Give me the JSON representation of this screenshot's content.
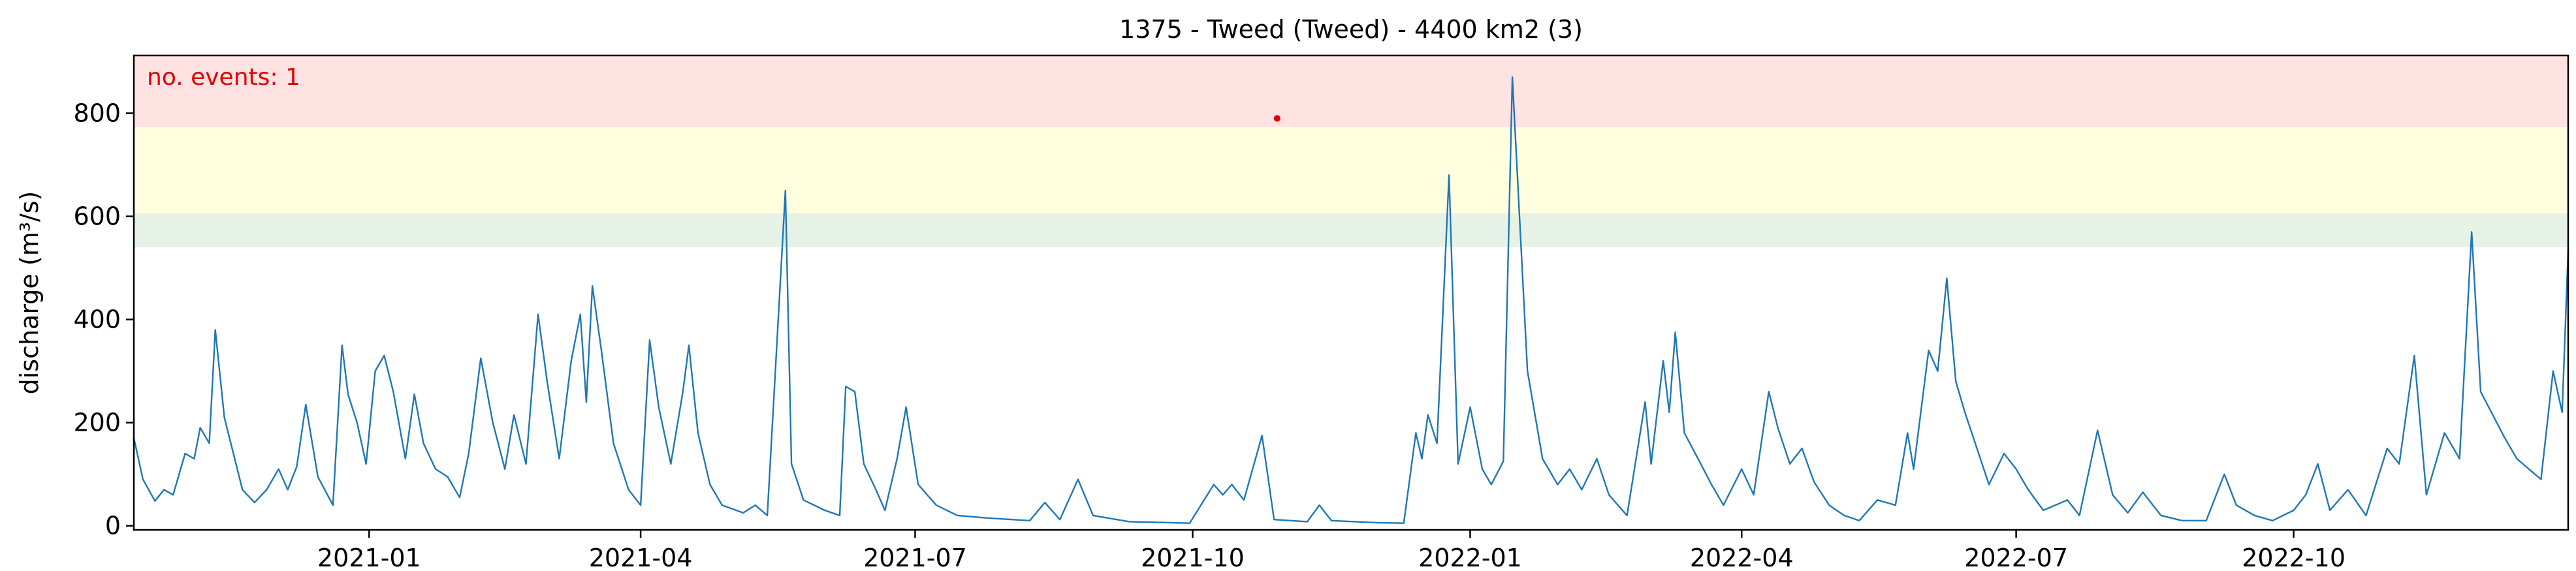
{
  "chart_data": {
    "type": "line",
    "title": "1375 - Tweed (Tweed) - 4400 km2 (3)",
    "xlabel": "",
    "ylabel": "discharge (m³/s)",
    "x_range": [
      "2020-10-15",
      "2022-12-31"
    ],
    "ylim": [
      -8,
      912
    ],
    "x_ticks": [
      "2021-01",
      "2021-04",
      "2021-07",
      "2021-10",
      "2022-01",
      "2022-04",
      "2022-07",
      "2022-10"
    ],
    "x_tick_dates": [
      "2021-01-01",
      "2021-04-01",
      "2021-07-01",
      "2021-10-01",
      "2022-01-01",
      "2022-04-01",
      "2022-07-01",
      "2022-10-01"
    ],
    "y_ticks": [
      0,
      200,
      400,
      600,
      800
    ],
    "bands": [
      {
        "from": 540,
        "to": 606,
        "color": "#e6f2e6"
      },
      {
        "from": 606,
        "to": 773,
        "color": "#ffffe0"
      },
      {
        "from": 773,
        "to": 912,
        "color": "#ffe2e2"
      }
    ],
    "annotation": {
      "text": "no. events: 1",
      "color": "#e00000"
    },
    "line_color": "#1f77b4",
    "event_color": "#e00000",
    "grid": false,
    "series": [
      {
        "points": [
          [
            "2020-10-15",
            170
          ],
          [
            "2020-10-18",
            90
          ],
          [
            "2020-10-22",
            48
          ],
          [
            "2020-10-25",
            70
          ],
          [
            "2020-10-28",
            60
          ],
          [
            "2020-11-01",
            140
          ],
          [
            "2020-11-04",
            130
          ],
          [
            "2020-11-06",
            190
          ],
          [
            "2020-11-09",
            160
          ],
          [
            "2020-11-11",
            380
          ],
          [
            "2020-11-14",
            210
          ],
          [
            "2020-11-20",
            70
          ],
          [
            "2020-11-24",
            45
          ],
          [
            "2020-11-28",
            70
          ],
          [
            "2020-12-02",
            110
          ],
          [
            "2020-12-05",
            70
          ],
          [
            "2020-12-08",
            115
          ],
          [
            "2020-12-11",
            235
          ],
          [
            "2020-12-15",
            95
          ],
          [
            "2020-12-20",
            40
          ],
          [
            "2020-12-23",
            350
          ],
          [
            "2020-12-25",
            255
          ],
          [
            "2020-12-28",
            200
          ],
          [
            "2020-12-31",
            120
          ],
          [
            "2021-01-03",
            300
          ],
          [
            "2021-01-06",
            330
          ],
          [
            "2021-01-09",
            260
          ],
          [
            "2021-01-13",
            130
          ],
          [
            "2021-01-16",
            255
          ],
          [
            "2021-01-19",
            160
          ],
          [
            "2021-01-23",
            110
          ],
          [
            "2021-01-27",
            95
          ],
          [
            "2021-01-31",
            55
          ],
          [
            "2021-02-03",
            140
          ],
          [
            "2021-02-07",
            325
          ],
          [
            "2021-02-11",
            200
          ],
          [
            "2021-02-15",
            110
          ],
          [
            "2021-02-18",
            215
          ],
          [
            "2021-02-22",
            120
          ],
          [
            "2021-02-26",
            410
          ],
          [
            "2021-03-01",
            280
          ],
          [
            "2021-03-05",
            130
          ],
          [
            "2021-03-09",
            320
          ],
          [
            "2021-03-12",
            410
          ],
          [
            "2021-03-14",
            240
          ],
          [
            "2021-03-16",
            465
          ],
          [
            "2021-03-19",
            340
          ],
          [
            "2021-03-23",
            160
          ],
          [
            "2021-03-28",
            70
          ],
          [
            "2021-04-01",
            40
          ],
          [
            "2021-04-04",
            360
          ],
          [
            "2021-04-07",
            230
          ],
          [
            "2021-04-11",
            120
          ],
          [
            "2021-04-15",
            260
          ],
          [
            "2021-04-17",
            350
          ],
          [
            "2021-04-20",
            180
          ],
          [
            "2021-04-24",
            80
          ],
          [
            "2021-04-28",
            40
          ],
          [
            "2021-05-05",
            25
          ],
          [
            "2021-05-09",
            40
          ],
          [
            "2021-05-13",
            20
          ],
          [
            "2021-05-19",
            650
          ],
          [
            "2021-05-21",
            120
          ],
          [
            "2021-05-25",
            50
          ],
          [
            "2021-06-01",
            30
          ],
          [
            "2021-06-06",
            20
          ],
          [
            "2021-06-08",
            270
          ],
          [
            "2021-06-11",
            260
          ],
          [
            "2021-06-14",
            120
          ],
          [
            "2021-06-18",
            70
          ],
          [
            "2021-06-21",
            30
          ],
          [
            "2021-06-25",
            130
          ],
          [
            "2021-06-28",
            230
          ],
          [
            "2021-07-02",
            80
          ],
          [
            "2021-07-08",
            40
          ],
          [
            "2021-07-15",
            20
          ],
          [
            "2021-07-25",
            15
          ],
          [
            "2021-08-08",
            10
          ],
          [
            "2021-08-13",
            45
          ],
          [
            "2021-08-18",
            12
          ],
          [
            "2021-08-24",
            90
          ],
          [
            "2021-08-29",
            20
          ],
          [
            "2021-09-10",
            8
          ],
          [
            "2021-09-30",
            5
          ],
          [
            "2021-10-08",
            80
          ],
          [
            "2021-10-11",
            60
          ],
          [
            "2021-10-14",
            80
          ],
          [
            "2021-10-18",
            50
          ],
          [
            "2021-10-24",
            175
          ],
          [
            "2021-10-28",
            12
          ],
          [
            "2021-11-08",
            8
          ],
          [
            "2021-11-12",
            40
          ],
          [
            "2021-11-16",
            10
          ],
          [
            "2021-12-01",
            6
          ],
          [
            "2021-12-10",
            5
          ],
          [
            "2021-12-14",
            180
          ],
          [
            "2021-12-16",
            130
          ],
          [
            "2021-12-18",
            215
          ],
          [
            "2021-12-21",
            160
          ],
          [
            "2021-12-25",
            680
          ],
          [
            "2021-12-28",
            120
          ],
          [
            "2022-01-01",
            230
          ],
          [
            "2022-01-05",
            110
          ],
          [
            "2022-01-08",
            80
          ],
          [
            "2022-01-12",
            125
          ],
          [
            "2022-01-15",
            870
          ],
          [
            "2022-01-17",
            640
          ],
          [
            "2022-01-20",
            300
          ],
          [
            "2022-01-25",
            130
          ],
          [
            "2022-01-30",
            80
          ],
          [
            "2022-02-03",
            110
          ],
          [
            "2022-02-07",
            70
          ],
          [
            "2022-02-12",
            130
          ],
          [
            "2022-02-16",
            60
          ],
          [
            "2022-02-22",
            20
          ],
          [
            "2022-02-28",
            240
          ],
          [
            "2022-03-02",
            120
          ],
          [
            "2022-03-06",
            320
          ],
          [
            "2022-03-08",
            220
          ],
          [
            "2022-03-10",
            375
          ],
          [
            "2022-03-13",
            180
          ],
          [
            "2022-03-18",
            125
          ],
          [
            "2022-03-22",
            80
          ],
          [
            "2022-03-26",
            40
          ],
          [
            "2022-04-01",
            110
          ],
          [
            "2022-04-05",
            60
          ],
          [
            "2022-04-10",
            260
          ],
          [
            "2022-04-13",
            190
          ],
          [
            "2022-04-17",
            120
          ],
          [
            "2022-04-21",
            150
          ],
          [
            "2022-04-25",
            85
          ],
          [
            "2022-04-30",
            40
          ],
          [
            "2022-05-05",
            20
          ],
          [
            "2022-05-10",
            10
          ],
          [
            "2022-05-16",
            50
          ],
          [
            "2022-05-22",
            40
          ],
          [
            "2022-05-26",
            180
          ],
          [
            "2022-05-28",
            110
          ],
          [
            "2022-06-02",
            340
          ],
          [
            "2022-06-05",
            300
          ],
          [
            "2022-06-08",
            480
          ],
          [
            "2022-06-11",
            280
          ],
          [
            "2022-06-14",
            220
          ],
          [
            "2022-06-18",
            150
          ],
          [
            "2022-06-22",
            80
          ],
          [
            "2022-06-27",
            140
          ],
          [
            "2022-07-01",
            110
          ],
          [
            "2022-07-05",
            70
          ],
          [
            "2022-07-10",
            30
          ],
          [
            "2022-07-18",
            50
          ],
          [
            "2022-07-22",
            20
          ],
          [
            "2022-07-28",
            185
          ],
          [
            "2022-08-02",
            60
          ],
          [
            "2022-08-07",
            25
          ],
          [
            "2022-08-12",
            65
          ],
          [
            "2022-08-18",
            20
          ],
          [
            "2022-08-25",
            10
          ],
          [
            "2022-09-02",
            10
          ],
          [
            "2022-09-08",
            100
          ],
          [
            "2022-09-12",
            40
          ],
          [
            "2022-09-18",
            20
          ],
          [
            "2022-09-24",
            10
          ],
          [
            "2022-10-01",
            30
          ],
          [
            "2022-10-05",
            60
          ],
          [
            "2022-10-09",
            120
          ],
          [
            "2022-10-13",
            30
          ],
          [
            "2022-10-19",
            70
          ],
          [
            "2022-10-25",
            20
          ],
          [
            "2022-11-01",
            150
          ],
          [
            "2022-11-05",
            120
          ],
          [
            "2022-11-10",
            330
          ],
          [
            "2022-11-14",
            60
          ],
          [
            "2022-11-20",
            180
          ],
          [
            "2022-11-25",
            130
          ],
          [
            "2022-11-29",
            570
          ],
          [
            "2022-12-02",
            260
          ],
          [
            "2022-12-06",
            215
          ],
          [
            "2022-12-10",
            170
          ],
          [
            "2022-12-14",
            130
          ],
          [
            "2022-12-18",
            110
          ],
          [
            "2022-12-22",
            90
          ],
          [
            "2022-12-26",
            300
          ],
          [
            "2022-12-29",
            220
          ],
          [
            "2022-12-31",
            535
          ]
        ]
      }
    ],
    "events": [
      {
        "x": "2021-10-29",
        "y": 790
      }
    ]
  }
}
